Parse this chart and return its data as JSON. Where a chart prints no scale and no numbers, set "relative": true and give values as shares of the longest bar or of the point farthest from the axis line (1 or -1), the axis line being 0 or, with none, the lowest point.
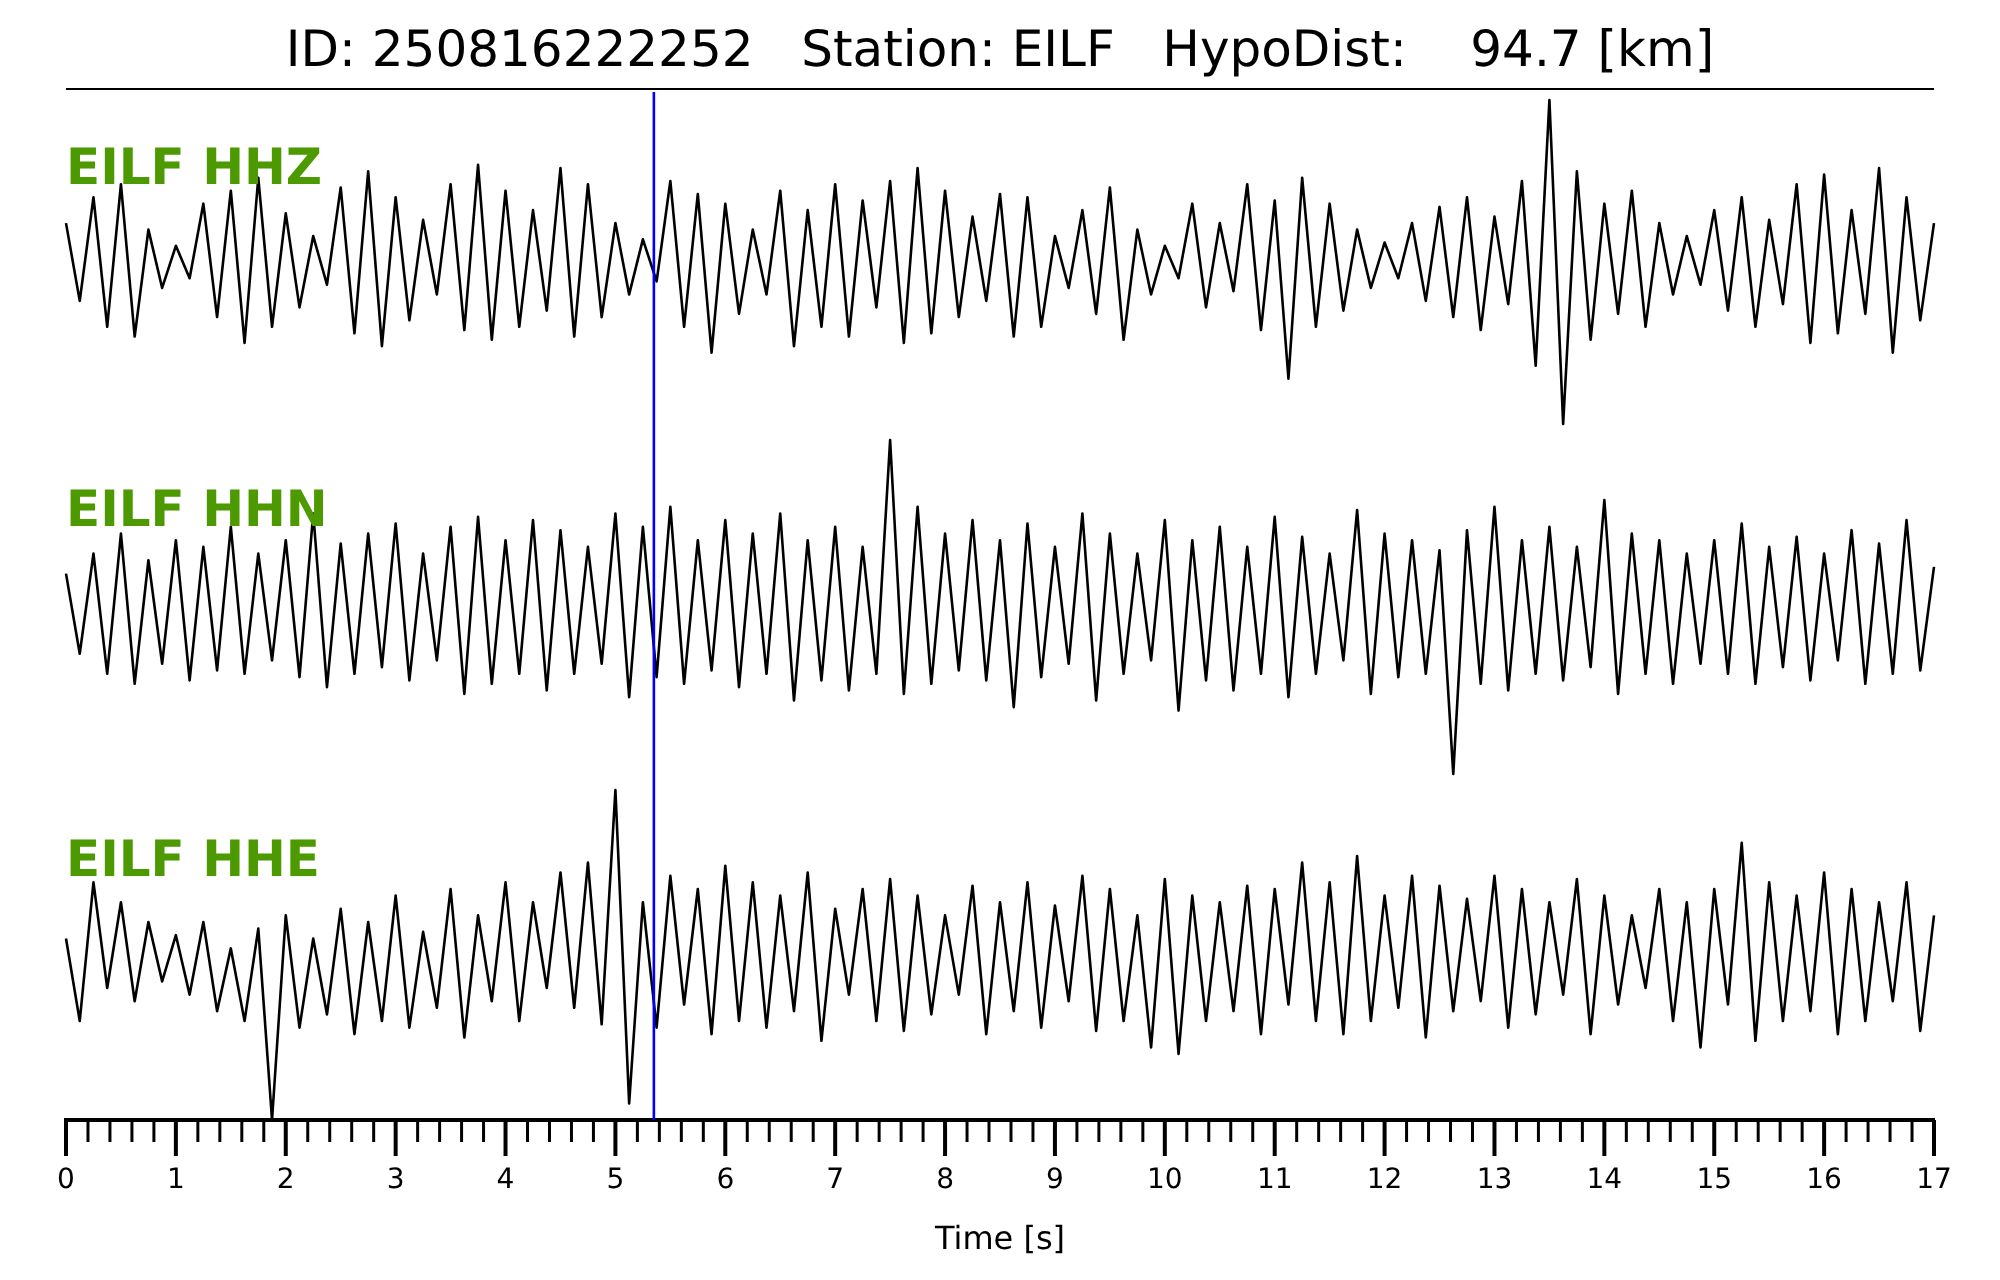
{
  "chart_data": [
    {
      "type": "line",
      "title": "ID: 250816222252   Station: EILF   HypoDist:    94.7 [km]",
      "relative": true,
      "xlim": [
        0,
        17
      ],
      "tick_labels": false,
      "marker": "none",
      "line_style": "solid",
      "x": [
        0,
        0.125,
        0.25,
        0.375,
        0.5,
        0.625,
        0.75,
        0.875,
        1,
        1.125,
        1.25,
        1.375,
        1.5,
        1.625,
        1.75,
        1.875,
        2,
        2.125,
        2.25,
        2.375,
        2.5,
        2.625,
        2.75,
        2.875,
        3,
        3.125,
        3.25,
        3.375,
        3.5,
        3.625,
        3.75,
        3.875,
        4,
        4.125,
        4.25,
        4.375,
        4.5,
        4.625,
        4.75,
        4.875,
        5,
        5.125,
        5.25,
        5.375,
        5.5,
        5.625,
        5.75,
        5.875,
        6,
        6.125,
        6.25,
        6.375,
        6.5,
        6.625,
        6.75,
        6.875,
        7,
        7.125,
        7.25,
        7.375,
        7.5,
        7.625,
        7.75,
        7.875,
        8,
        8.125,
        8.25,
        8.375,
        8.5,
        8.625,
        8.75,
        8.875,
        9,
        9.125,
        9.25,
        9.375,
        9.5,
        9.625,
        9.75,
        9.875,
        10,
        10.125,
        10.25,
        10.375,
        10.5,
        10.625,
        10.75,
        10.875,
        11,
        11.125,
        11.25,
        11.375,
        11.5,
        11.625,
        11.75,
        11.875,
        12,
        12.125,
        12.25,
        12.375,
        12.5,
        12.625,
        12.75,
        12.875,
        13,
        13.125,
        13.25,
        13.375,
        13.5,
        13.625,
        13.75,
        13.875,
        14,
        14.125,
        14.25,
        14.375,
        14.5,
        14.625,
        14.75,
        14.875,
        15,
        15.125,
        15.25,
        15.375,
        15.5,
        15.625,
        15.75,
        15.875,
        16,
        16.125,
        16.25,
        16.375,
        16.5,
        16.625,
        16.75,
        16.875,
        17
      ],
      "series": [
        {
          "name": "EILF HHZ",
          "color": "#000000",
          "values": [
            0.62,
            0.38,
            0.7,
            0.3,
            0.74,
            0.27,
            0.6,
            0.42,
            0.55,
            0.45,
            0.68,
            0.33,
            0.72,
            0.25,
            0.76,
            0.3,
            0.65,
            0.36,
            0.58,
            0.43,
            0.73,
            0.28,
            0.78,
            0.24,
            0.7,
            0.32,
            0.63,
            0.4,
            0.74,
            0.29,
            0.8,
            0.26,
            0.72,
            0.3,
            0.66,
            0.35,
            0.79,
            0.27,
            0.74,
            0.33,
            0.62,
            0.4,
            0.57,
            0.44,
            0.75,
            0.3,
            0.71,
            0.22,
            0.68,
            0.34,
            0.6,
            0.4,
            0.72,
            0.24,
            0.66,
            0.3,
            0.74,
            0.27,
            0.69,
            0.36,
            0.75,
            0.25,
            0.79,
            0.28,
            0.72,
            0.33,
            0.64,
            0.38,
            0.71,
            0.27,
            0.7,
            0.3,
            0.58,
            0.42,
            0.66,
            0.34,
            0.73,
            0.26,
            0.6,
            0.4,
            0.55,
            0.45,
            0.68,
            0.36,
            0.62,
            0.41,
            0.74,
            0.29,
            0.69,
            0.14,
            0.76,
            0.3,
            0.68,
            0.35,
            0.6,
            0.42,
            0.56,
            0.45,
            0.62,
            0.38,
            0.67,
            0.33,
            0.7,
            0.29,
            0.64,
            0.37,
            0.75,
            0.18,
            1,
            0,
            0.78,
            0.26,
            0.68,
            0.34,
            0.72,
            0.3,
            0.62,
            0.4,
            0.58,
            0.43,
            0.66,
            0.35,
            0.7,
            0.3,
            0.63,
            0.37,
            0.74,
            0.25,
            0.77,
            0.28,
            0.66,
            0.34,
            0.79,
            0.22,
            0.7,
            0.32,
            0.62
          ]
        }
      ],
      "ref_lines": [
        {
          "axis": "x",
          "value": 5.35,
          "color": "#0000ff"
        }
      ]
    },
    {
      "type": "line",
      "relative": true,
      "xlim": [
        0,
        17
      ],
      "tick_labels": false,
      "marker": "none",
      "line_style": "solid",
      "x": [
        0,
        0.125,
        0.25,
        0.375,
        0.5,
        0.625,
        0.75,
        0.875,
        1,
        1.125,
        1.25,
        1.375,
        1.5,
        1.625,
        1.75,
        1.875,
        2,
        2.125,
        2.25,
        2.375,
        2.5,
        2.625,
        2.75,
        2.875,
        3,
        3.125,
        3.25,
        3.375,
        3.5,
        3.625,
        3.75,
        3.875,
        4,
        4.125,
        4.25,
        4.375,
        4.5,
        4.625,
        4.75,
        4.875,
        5,
        5.125,
        5.25,
        5.375,
        5.5,
        5.625,
        5.75,
        5.875,
        6,
        6.125,
        6.25,
        6.375,
        6.5,
        6.625,
        6.75,
        6.875,
        7,
        7.125,
        7.25,
        7.375,
        7.5,
        7.625,
        7.75,
        7.875,
        8,
        8.125,
        8.25,
        8.375,
        8.5,
        8.625,
        8.75,
        8.875,
        9,
        9.125,
        9.25,
        9.375,
        9.5,
        9.625,
        9.75,
        9.875,
        10,
        10.125,
        10.25,
        10.375,
        10.5,
        10.625,
        10.75,
        10.875,
        11,
        11.125,
        11.25,
        11.375,
        11.5,
        11.625,
        11.75,
        11.875,
        12,
        12.125,
        12.25,
        12.375,
        12.5,
        12.625,
        12.75,
        12.875,
        13,
        13.125,
        13.25,
        13.375,
        13.5,
        13.625,
        13.75,
        13.875,
        14,
        14.125,
        14.25,
        14.375,
        14.5,
        14.625,
        14.75,
        14.875,
        15,
        15.125,
        15.25,
        15.375,
        15.5,
        15.625,
        15.75,
        15.875,
        16,
        16.125,
        16.25,
        16.375,
        16.5,
        16.625,
        16.75,
        16.875,
        17
      ],
      "series": [
        {
          "name": "EILF HHN",
          "color": "#000000",
          "values": [
            0.6,
            0.36,
            0.66,
            0.3,
            0.72,
            0.27,
            0.64,
            0.33,
            0.7,
            0.28,
            0.68,
            0.31,
            0.74,
            0.3,
            0.66,
            0.34,
            0.7,
            0.29,
            0.78,
            0.26,
            0.69,
            0.3,
            0.72,
            0.32,
            0.75,
            0.28,
            0.66,
            0.34,
            0.74,
            0.24,
            0.77,
            0.27,
            0.7,
            0.3,
            0.76,
            0.25,
            0.73,
            0.3,
            0.68,
            0.33,
            0.78,
            0.23,
            0.74,
            0.29,
            0.8,
            0.27,
            0.7,
            0.31,
            0.76,
            0.26,
            0.72,
            0.3,
            0.78,
            0.22,
            0.7,
            0.28,
            0.74,
            0.25,
            0.68,
            0.3,
            1,
            0.24,
            0.8,
            0.27,
            0.72,
            0.31,
            0.76,
            0.28,
            0.7,
            0.2,
            0.75,
            0.29,
            0.68,
            0.33,
            0.78,
            0.22,
            0.72,
            0.3,
            0.66,
            0.34,
            0.76,
            0.19,
            0.7,
            0.28,
            0.74,
            0.25,
            0.68,
            0.3,
            0.77,
            0.23,
            0.71,
            0.3,
            0.66,
            0.34,
            0.79,
            0.24,
            0.72,
            0.29,
            0.7,
            0.3,
            0.67,
            0,
            0.73,
            0.27,
            0.8,
            0.25,
            0.7,
            0.3,
            0.74,
            0.28,
            0.68,
            0.32,
            0.82,
            0.24,
            0.72,
            0.3,
            0.7,
            0.27,
            0.66,
            0.33,
            0.7,
            0.3,
            0.75,
            0.27,
            0.68,
            0.32,
            0.71,
            0.28,
            0.66,
            0.34,
            0.73,
            0.27,
            0.69,
            0.3,
            0.76,
            0.31,
            0.62
          ]
        }
      ],
      "ref_lines": [
        {
          "axis": "x",
          "value": 5.35,
          "color": "#0000ff"
        }
      ]
    },
    {
      "type": "line",
      "xlabel": "Time [s]",
      "relative": true,
      "xlim": [
        0,
        17
      ],
      "tick_labels": "x",
      "marker": "none",
      "line_style": "solid",
      "xticks": [
        0,
        {
          "value": 0.2,
          "label": null
        },
        {
          "value": 0.4,
          "label": null
        },
        {
          "value": 0.6,
          "label": null
        },
        {
          "value": 0.8,
          "label": null
        },
        1,
        {
          "value": 1.2,
          "label": null
        },
        {
          "value": 1.4,
          "label": null
        },
        {
          "value": 1.6,
          "label": null
        },
        {
          "value": 1.8,
          "label": null
        },
        2,
        {
          "value": 2.2,
          "label": null
        },
        {
          "value": 2.4,
          "label": null
        },
        {
          "value": 2.6,
          "label": null
        },
        {
          "value": 2.8,
          "label": null
        },
        3,
        {
          "value": 3.2,
          "label": null
        },
        {
          "value": 3.4,
          "label": null
        },
        {
          "value": 3.6,
          "label": null
        },
        {
          "value": 3.8,
          "label": null
        },
        4,
        {
          "value": 4.2,
          "label": null
        },
        {
          "value": 4.4,
          "label": null
        },
        {
          "value": 4.6,
          "label": null
        },
        {
          "value": 4.8,
          "label": null
        },
        5,
        {
          "value": 5.2,
          "label": null
        },
        {
          "value": 5.4,
          "label": null
        },
        {
          "value": 5.6,
          "label": null
        },
        {
          "value": 5.8,
          "label": null
        },
        6,
        {
          "value": 6.2,
          "label": null
        },
        {
          "value": 6.4,
          "label": null
        },
        {
          "value": 6.6,
          "label": null
        },
        {
          "value": 6.8,
          "label": null
        },
        7,
        {
          "value": 7.2,
          "label": null
        },
        {
          "value": 7.4,
          "label": null
        },
        {
          "value": 7.6,
          "label": null
        },
        {
          "value": 7.8,
          "label": null
        },
        8,
        {
          "value": 8.2,
          "label": null
        },
        {
          "value": 8.4,
          "label": null
        },
        {
          "value": 8.6,
          "label": null
        },
        {
          "value": 8.8,
          "label": null
        },
        9,
        {
          "value": 9.2,
          "label": null
        },
        {
          "value": 9.4,
          "label": null
        },
        {
          "value": 9.6,
          "label": null
        },
        {
          "value": 9.8,
          "label": null
        },
        10,
        {
          "value": 10.2,
          "label": null
        },
        {
          "value": 10.4,
          "label": null
        },
        {
          "value": 10.6,
          "label": null
        },
        {
          "value": 10.8,
          "label": null
        },
        11,
        {
          "value": 11.2,
          "label": null
        },
        {
          "value": 11.4,
          "label": null
        },
        {
          "value": 11.6,
          "label": null
        },
        {
          "value": 11.8,
          "label": null
        },
        12,
        {
          "value": 12.2,
          "label": null
        },
        {
          "value": 12.4,
          "label": null
        },
        {
          "value": 12.6,
          "label": null
        },
        {
          "value": 12.8,
          "label": null
        },
        13,
        {
          "value": 13.2,
          "label": null
        },
        {
          "value": 13.4,
          "label": null
        },
        {
          "value": 13.6,
          "label": null
        },
        {
          "value": 13.8,
          "label": null
        },
        14,
        {
          "value": 14.2,
          "label": null
        },
        {
          "value": 14.4,
          "label": null
        },
        {
          "value": 14.6,
          "label": null
        },
        {
          "value": 14.8,
          "label": null
        },
        15,
        {
          "value": 15.2,
          "label": null
        },
        {
          "value": 15.4,
          "label": null
        },
        {
          "value": 15.6,
          "label": null
        },
        {
          "value": 15.8,
          "label": null
        },
        16,
        {
          "value": 16.2,
          "label": null
        },
        {
          "value": 16.4,
          "label": null
        },
        {
          "value": 16.6,
          "label": null
        },
        {
          "value": 16.8,
          "label": null
        },
        17
      ],
      "x": [
        0,
        0.125,
        0.25,
        0.375,
        0.5,
        0.625,
        0.75,
        0.875,
        1,
        1.125,
        1.25,
        1.375,
        1.5,
        1.625,
        1.75,
        1.875,
        2,
        2.125,
        2.25,
        2.375,
        2.5,
        2.625,
        2.75,
        2.875,
        3,
        3.125,
        3.25,
        3.375,
        3.5,
        3.625,
        3.75,
        3.875,
        4,
        4.125,
        4.25,
        4.375,
        4.5,
        4.625,
        4.75,
        4.875,
        5,
        5.125,
        5.25,
        5.375,
        5.5,
        5.625,
        5.75,
        5.875,
        6,
        6.125,
        6.25,
        6.375,
        6.5,
        6.625,
        6.75,
        6.875,
        7,
        7.125,
        7.25,
        7.375,
        7.5,
        7.625,
        7.75,
        7.875,
        8,
        8.125,
        8.25,
        8.375,
        8.5,
        8.625,
        8.75,
        8.875,
        9,
        9.125,
        9.25,
        9.375,
        9.5,
        9.625,
        9.75,
        9.875,
        10,
        10.125,
        10.25,
        10.375,
        10.5,
        10.625,
        10.75,
        10.875,
        11,
        11.125,
        11.25,
        11.375,
        11.5,
        11.625,
        11.75,
        11.875,
        12,
        12.125,
        12.25,
        12.375,
        12.5,
        12.625,
        12.75,
        12.875,
        13,
        13.125,
        13.25,
        13.375,
        13.5,
        13.625,
        13.75,
        13.875,
        14,
        14.125,
        14.25,
        14.375,
        14.5,
        14.625,
        14.75,
        14.875,
        15,
        15.125,
        15.25,
        15.375,
        15.5,
        15.625,
        15.75,
        15.875,
        16,
        16.125,
        16.25,
        16.375,
        16.5,
        16.625,
        16.75,
        16.875,
        17
      ],
      "series": [
        {
          "name": "EILF HHE",
          "color": "#000000",
          "values": [
            0.55,
            0.3,
            0.72,
            0.4,
            0.66,
            0.36,
            0.6,
            0.42,
            0.56,
            0.38,
            0.6,
            0.33,
            0.52,
            0.3,
            0.58,
            0,
            0.62,
            0.28,
            0.55,
            0.32,
            0.64,
            0.26,
            0.6,
            0.3,
            0.68,
            0.28,
            0.57,
            0.34,
            0.7,
            0.25,
            0.62,
            0.36,
            0.72,
            0.3,
            0.66,
            0.4,
            0.75,
            0.34,
            0.78,
            0.29,
            1,
            0.05,
            0.66,
            0.28,
            0.74,
            0.35,
            0.7,
            0.26,
            0.77,
            0.3,
            0.72,
            0.28,
            0.68,
            0.33,
            0.75,
            0.24,
            0.64,
            0.38,
            0.7,
            0.3,
            0.73,
            0.27,
            0.68,
            0.32,
            0.62,
            0.38,
            0.71,
            0.26,
            0.66,
            0.33,
            0.72,
            0.28,
            0.65,
            0.36,
            0.74,
            0.27,
            0.7,
            0.3,
            0.62,
            0.22,
            0.73,
            0.2,
            0.68,
            0.3,
            0.66,
            0.33,
            0.71,
            0.26,
            0.7,
            0.35,
            0.78,
            0.3,
            0.72,
            0.26,
            0.8,
            0.3,
            0.68,
            0.34,
            0.74,
            0.25,
            0.71,
            0.33,
            0.67,
            0.36,
            0.74,
            0.28,
            0.7,
            0.32,
            0.66,
            0.38,
            0.73,
            0.26,
            0.68,
            0.35,
            0.62,
            0.4,
            0.7,
            0.3,
            0.66,
            0.22,
            0.7,
            0.35,
            0.84,
            0.24,
            0.72,
            0.3,
            0.68,
            0.33,
            0.75,
            0.26,
            0.7,
            0.3,
            0.66,
            0.36,
            0.72,
            0.27,
            0.62
          ]
        }
      ],
      "ref_lines": [
        {
          "axis": "x",
          "value": 5.35,
          "color": "#0000ff"
        }
      ]
    }
  ]
}
